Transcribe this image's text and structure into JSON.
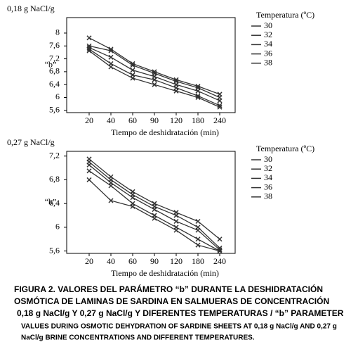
{
  "chart_data": [
    {
      "type": "line",
      "y_unit": "0,18 g NaCl/g",
      "y_label": "“b”",
      "x_label": "Tiempo de deshidratación (min)",
      "legend_title": "Temperatura (ºC)",
      "legend": "right",
      "categories": [
        "20",
        "40",
        "60",
        "90",
        "120",
        "180",
        "240"
      ],
      "ylim": [
        5.53,
        8.48
      ],
      "yticks": [
        {
          "value": 5.6,
          "label": "5,6"
        },
        6,
        {
          "value": 6.4,
          "label": "6,4"
        },
        {
          "value": 6.8,
          "label": "6,8"
        },
        {
          "value": 7.2,
          "label": "7,2"
        },
        {
          "value": 7.6,
          "label": "7,6"
        },
        8
      ],
      "series": [
        {
          "name": "30",
          "color": "#333333",
          "values": [
            7.85,
            7.5,
            7.05,
            6.8,
            6.55,
            6.35,
            6.1
          ]
        },
        {
          "name": "32",
          "color": "#333333",
          "values": [
            7.6,
            7.45,
            7.0,
            6.75,
            6.5,
            6.3,
            6.0
          ]
        },
        {
          "name": "34",
          "color": "#333333",
          "values": [
            7.55,
            7.25,
            6.85,
            6.65,
            6.4,
            6.2,
            5.9
          ]
        },
        {
          "name": "36",
          "color": "#333333",
          "values": [
            7.5,
            7.05,
            6.7,
            6.55,
            6.3,
            6.05,
            5.75
          ]
        },
        {
          "name": "38",
          "color": "#333333",
          "values": [
            7.45,
            6.95,
            6.6,
            6.4,
            6.2,
            6.0,
            5.7
          ]
        }
      ]
    },
    {
      "type": "line",
      "y_unit": "0,27 g NaCl/g",
      "y_label": "“b”",
      "x_label": "Tiempo de deshidratación (min)",
      "legend_title": "Temperatura (ºC)",
      "legend": "right",
      "categories": [
        "20",
        "40",
        "60",
        "90",
        "120",
        "180",
        "240"
      ],
      "ylim": [
        5.56,
        7.28
      ],
      "yticks": [
        {
          "value": 5.6,
          "label": "5,6"
        },
        6,
        {
          "value": 6.4,
          "label": "6,4"
        },
        {
          "value": 6.8,
          "label": "6,8"
        },
        {
          "value": 7.2,
          "label": "7,2"
        }
      ],
      "series": [
        {
          "name": "30",
          "color": "#333333",
          "values": [
            7.15,
            6.85,
            6.6,
            6.4,
            6.25,
            6.1,
            5.8
          ]
        },
        {
          "name": "32",
          "color": "#333333",
          "values": [
            7.1,
            6.8,
            6.55,
            6.35,
            6.2,
            6.0,
            5.65
          ]
        },
        {
          "name": "34",
          "color": "#333333",
          "values": [
            7.05,
            6.75,
            6.5,
            6.3,
            6.1,
            5.95,
            5.62
          ]
        },
        {
          "name": "36",
          "color": "#333333",
          "values": [
            6.95,
            6.7,
            6.4,
            6.2,
            6.0,
            5.8,
            5.6
          ]
        },
        {
          "name": "38",
          "color": "#333333",
          "values": [
            6.8,
            6.45,
            6.35,
            6.15,
            5.95,
            5.7,
            5.6
          ]
        }
      ]
    }
  ],
  "caption": [
    "FIGURA 2. VALORES DEL PARÁMETRO “b” DURANTE LA DESHIDRATACIÓN",
    "OSMÓTICA DE LAMINAS DE SARDINA  EN SALMUERAS DE CONCENTRACIÓN",
    "0,18 g NaCl/g Y 0,27 g NaCl/g Y DIFERENTES TEMPERATURAS / “b” PARAMETER",
    "VALUES DURING OSMOTIC DEHYDRATION OF SARDINE SHEETS AT 0,18 g NaCl/g AND 0,27 g",
    "NaCl/g BRINE CONCENTRATIONS AND DIFFERENT  TEMPERATURES."
  ]
}
